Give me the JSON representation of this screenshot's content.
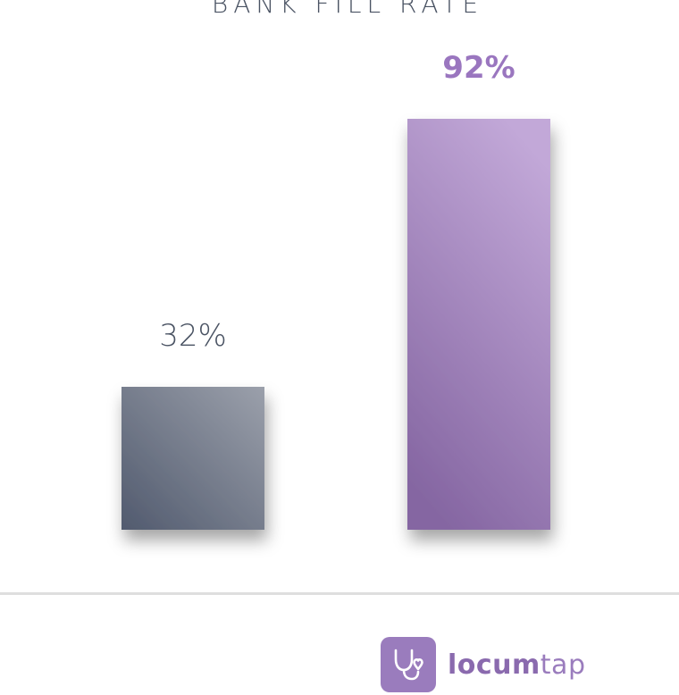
{
  "chart_data": {
    "type": "bar",
    "title": "BANK FILL RATE",
    "categories": [
      "",
      ""
    ],
    "values": [
      32,
      92
    ],
    "value_labels": [
      "32%",
      "92%"
    ],
    "ylim": [
      0,
      100
    ],
    "grid": false,
    "colors": {
      "bar_1_top": "#9ba0ab",
      "bar_1_bottom": "#515a6e",
      "bar_2_top": "#c2a8d8",
      "bar_2_bottom": "#8566a2",
      "label_1": "#4a5363",
      "label_2": "#9a76bf"
    }
  },
  "brand": {
    "name_bold": "locum",
    "name_light": "tap",
    "icon": "stethoscope-heart-icon"
  }
}
